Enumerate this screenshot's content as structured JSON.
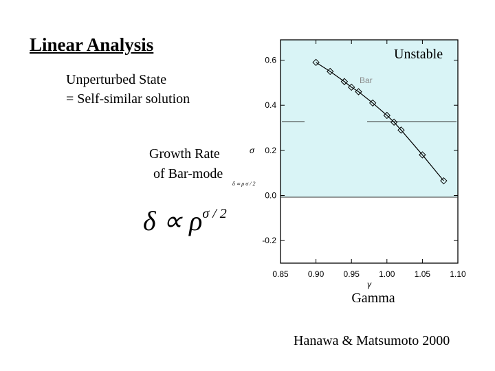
{
  "slide": {
    "title": "Linear Analysis",
    "state_line1": "Unperturbed State",
    "state_line2": "= Self-similar solution",
    "growth_line1": "Growth Rate",
    "growth_line2": "of Bar-mode",
    "formula_base": "δ ∝ ρ",
    "formula_exp": "σ / 2",
    "tiny_formula": "δ ∝ ρ σ / 2",
    "citation": "Hanawa & Matsumoto 2000"
  },
  "chart_data": {
    "type": "line",
    "title": "",
    "xlabel": "γ",
    "ylabel": "σ",
    "xlim": [
      0.85,
      1.1
    ],
    "ylim": [
      -0.3,
      0.69
    ],
    "xticks": [
      0.85,
      0.9,
      0.95,
      1.0,
      1.05,
      1.1
    ],
    "xtick_labels": [
      "0.85",
      "0.90",
      "0.95",
      "1.00",
      "1.05",
      "1.10"
    ],
    "yticks": [
      -0.2,
      0.0,
      0.2,
      0.4,
      0.6
    ],
    "ytick_labels": [
      "-0.2",
      "0.0",
      "0.2",
      "0.4",
      "0.6"
    ],
    "series": [
      {
        "name": "Bar",
        "x": [
          0.9,
          0.92,
          0.94,
          0.95,
          0.96,
          0.98,
          1.0,
          1.01,
          1.02,
          1.05,
          1.08
        ],
        "y": [
          0.59,
          0.55,
          0.505,
          0.48,
          0.46,
          0.41,
          0.355,
          0.325,
          0.29,
          0.18,
          0.065
        ]
      }
    ],
    "region_label": "Unstable",
    "x_caption": "Gamma",
    "colors": {
      "unstable_fill": "#d9f4f6",
      "mark": "#000000",
      "label_gray": "#8a8a8a"
    }
  }
}
